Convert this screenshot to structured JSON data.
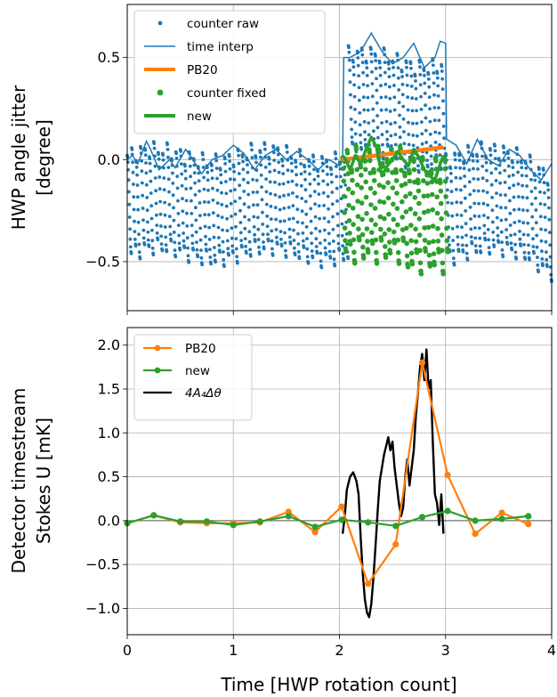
{
  "colors": {
    "blue": "#1f77b4",
    "orange": "#ff7f0e",
    "green": "#2ca02c",
    "black": "#000000"
  },
  "chart_data": [
    {
      "type": "scatter",
      "ylabel_line1": "HWP angle jitter",
      "ylabel_line2": "[degree]",
      "xlim": [
        0,
        4
      ],
      "ylim": [
        -0.74,
        0.76
      ],
      "yticks": [
        -0.5,
        0.0,
        0.5
      ],
      "ytick_labels": [
        "−0.5",
        "0.0",
        "0.5"
      ],
      "xticks": [
        0,
        1,
        2,
        3,
        4
      ],
      "grid": true,
      "legend_position": "upper left",
      "legend": [
        "counter raw",
        "time interp",
        "PB20",
        "counter fixed",
        "new"
      ],
      "series": [
        {
          "name": "counter raw",
          "style": "dots",
          "color": "blue",
          "period": 0.0417,
          "x_range": [
            0,
            4
          ],
          "overall_offset": -0.22,
          "jump_x": [
            2.05,
            3.0
          ],
          "jump_amount": 0.5
        },
        {
          "name": "time interp",
          "style": "line",
          "color": "blue",
          "x": [
            0,
            0.05,
            0.1,
            0.18,
            0.22,
            0.3,
            0.4,
            0.45,
            0.55,
            0.62,
            0.7,
            0.8,
            0.9,
            1.0,
            1.1,
            1.2,
            1.3,
            1.4,
            1.5,
            1.6,
            1.7,
            1.8,
            1.9,
            2.0,
            2.03,
            2.04,
            2.1,
            2.2,
            2.3,
            2.4,
            2.5,
            2.6,
            2.7,
            2.8,
            2.9,
            2.95,
            3.0,
            3.01,
            3.1,
            3.2,
            3.3,
            3.4,
            3.5,
            3.6,
            3.7,
            3.8,
            3.9,
            4.0
          ],
          "y": [
            0.0,
            0.02,
            -0.02,
            0.09,
            0.05,
            -0.05,
            0.0,
            -0.04,
            0.05,
            0.0,
            -0.07,
            0.0,
            0.02,
            0.07,
            0.03,
            -0.05,
            0.02,
            0.05,
            0.0,
            0.04,
            0.0,
            -0.05,
            0.0,
            -0.03,
            0.0,
            0.5,
            0.5,
            0.53,
            0.62,
            0.53,
            0.47,
            0.5,
            0.57,
            0.45,
            0.5,
            0.58,
            0.57,
            0.1,
            0.07,
            -0.02,
            0.1,
            0.0,
            -0.03,
            0.05,
            0.02,
            -0.05,
            -0.1,
            -0.02
          ]
        },
        {
          "name": "PB20",
          "style": "line",
          "color": "orange",
          "x": [
            2.02,
            2.98
          ],
          "y": [
            0.0,
            0.06
          ]
        },
        {
          "name": "counter fixed",
          "style": "dots",
          "color": "green",
          "period": 0.0417,
          "x_range": [
            2.03,
            2.99
          ]
        },
        {
          "name": "new",
          "style": "line",
          "color": "green",
          "x": [
            2.02,
            2.05,
            2.1,
            2.15,
            2.2,
            2.25,
            2.3,
            2.35,
            2.4,
            2.45,
            2.5,
            2.55,
            2.6,
            2.65,
            2.7,
            2.75,
            2.8,
            2.85,
            2.9,
            2.95,
            2.98
          ],
          "y": [
            0.02,
            0.01,
            -0.05,
            0.02,
            -0.02,
            0.05,
            0.11,
            0.06,
            -0.08,
            -0.03,
            0.0,
            0.04,
            0.0,
            -0.03,
            0.05,
            0.01,
            -0.05,
            -0.08,
            -0.1,
            -0.02,
            0.02
          ]
        }
      ]
    },
    {
      "type": "line",
      "ylabel_line1": "Detector timestream",
      "ylabel_line2": "Stokes U [mK]",
      "xlabel": "Time [HWP rotation count]",
      "xlim": [
        0,
        4
      ],
      "ylim": [
        -1.3,
        2.2
      ],
      "yticks": [
        -1.0,
        -0.5,
        0.0,
        0.5,
        1.0,
        1.5,
        2.0
      ],
      "ytick_labels": [
        "−1.0",
        "−0.5",
        "0.0",
        "0.5",
        "1.0",
        "1.5",
        "2.0"
      ],
      "xticks": [
        0,
        1,
        2,
        3,
        4
      ],
      "xtick_labels": [
        "0",
        "1",
        "2",
        "3",
        "4"
      ],
      "grid": true,
      "legend_position": "upper left",
      "legend": [
        "PB20",
        "new",
        "4A₄Δθ"
      ],
      "series": [
        {
          "name": "PB20",
          "color": "orange",
          "markers": true,
          "x": [
            0.0,
            0.25,
            0.5,
            0.75,
            1.0,
            1.25,
            1.52,
            1.77,
            2.02,
            2.27,
            2.53,
            2.78,
            3.02,
            3.28,
            3.53,
            3.78
          ],
          "y": [
            -0.03,
            0.06,
            -0.02,
            -0.03,
            -0.03,
            -0.02,
            0.1,
            -0.13,
            0.16,
            -0.72,
            -0.27,
            1.8,
            0.52,
            -0.15,
            0.09,
            -0.04
          ]
        },
        {
          "name": "new",
          "color": "green",
          "markers": true,
          "x": [
            0.0,
            0.25,
            0.5,
            0.75,
            1.0,
            1.25,
            1.52,
            1.77,
            2.02,
            2.27,
            2.53,
            2.78,
            3.02,
            3.28,
            3.53,
            3.78
          ],
          "y": [
            -0.03,
            0.06,
            -0.01,
            -0.01,
            -0.05,
            -0.01,
            0.05,
            -0.07,
            0.01,
            -0.02,
            -0.06,
            0.04,
            0.11,
            0.0,
            0.02,
            0.05
          ]
        },
        {
          "name": "4A₄Δθ",
          "color": "black",
          "markers": false,
          "x": [
            2.03,
            2.05,
            2.07,
            2.1,
            2.13,
            2.16,
            2.18,
            2.2,
            2.22,
            2.24,
            2.26,
            2.28,
            2.3,
            2.32,
            2.34,
            2.36,
            2.38,
            2.4,
            2.42,
            2.44,
            2.46,
            2.48,
            2.5,
            2.52,
            2.54,
            2.56,
            2.58,
            2.6,
            2.62,
            2.64,
            2.66,
            2.68,
            2.7,
            2.72,
            2.74,
            2.76,
            2.78,
            2.8,
            2.82,
            2.84,
            2.86,
            2.88,
            2.9,
            2.92,
            2.94,
            2.96,
            2.98
          ],
          "y": [
            -0.15,
            0.05,
            0.35,
            0.5,
            0.55,
            0.45,
            0.3,
            -0.2,
            -0.6,
            -0.9,
            -1.05,
            -1.1,
            -0.95,
            -0.65,
            -0.3,
            0.1,
            0.45,
            0.6,
            0.75,
            0.85,
            0.95,
            0.8,
            0.9,
            0.6,
            0.4,
            0.2,
            0.05,
            0.15,
            0.5,
            0.7,
            0.4,
            0.6,
            0.8,
            1.2,
            1.45,
            1.75,
            1.9,
            1.6,
            1.95,
            1.5,
            1.6,
            0.9,
            0.3,
            0.2,
            -0.05,
            0.3,
            -0.15
          ]
        }
      ]
    }
  ]
}
